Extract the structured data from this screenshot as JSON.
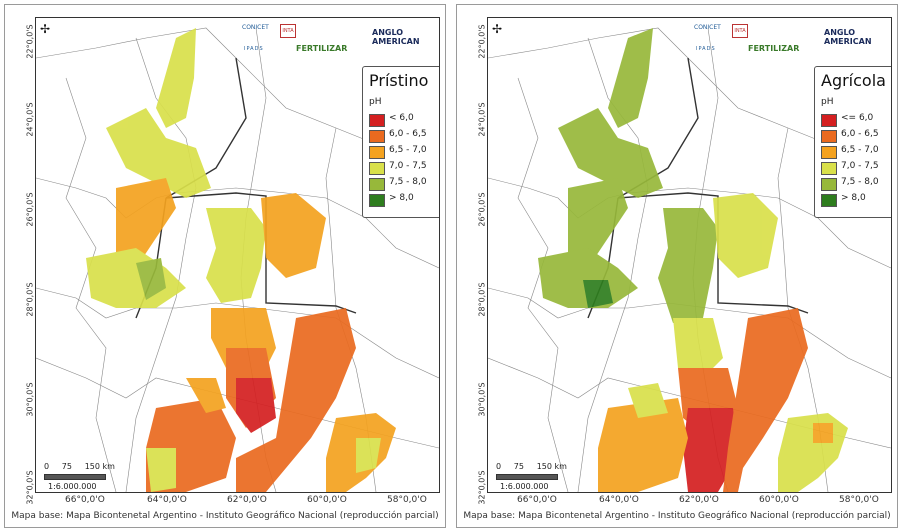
{
  "panels": [
    {
      "title": "Prístino",
      "legend_unit": "pH",
      "legend": [
        {
          "label": "< 6,0",
          "color": "#d41f20"
        },
        {
          "label": "6,0 - 6,5",
          "color": "#ea6a1f"
        },
        {
          "label": "6,5 - 7,0",
          "color": "#f4a21f"
        },
        {
          "label": "7,0 - 7,5",
          "color": "#d9e04a"
        },
        {
          "label": "7,5 - 8,0",
          "color": "#97b83a"
        },
        {
          "label": "> 8,0",
          "color": "#2e7d1e"
        }
      ]
    },
    {
      "title": "Agrícola",
      "legend_unit": "pH",
      "legend": [
        {
          "label": "<= 6,0",
          "color": "#d41f20"
        },
        {
          "label": "6,0 - 6,5",
          "color": "#ea6a1f"
        },
        {
          "label": "6,5 - 7,0",
          "color": "#f4a21f"
        },
        {
          "label": "7,0 - 7,5",
          "color": "#d9e04a"
        },
        {
          "label": "7,5 - 8,0",
          "color": "#97b83a"
        },
        {
          "label": "> 8,0",
          "color": "#2e7d1e"
        }
      ]
    }
  ],
  "lat_labels": [
    "22°0,0'S",
    "24°0,0'S",
    "26°0,0'S",
    "28°0,0'S",
    "30°0,0'S",
    "32°0,0'S"
  ],
  "lon_labels": [
    "66°0,0'O",
    "64°0,0'O",
    "62°0,0'O",
    "60°0,0'O",
    "58°0,0'O"
  ],
  "scale": {
    "ticks": "0     75     150 km",
    "ratio": "1:6.000.000"
  },
  "logos": {
    "conicet": "CONICET",
    "ipads": "IPADS",
    "inta": "INTA",
    "fertilizar": "FERTILIZAR",
    "anglo": "ANGLO\nAMERICAN"
  },
  "caption": "Mapa base: Mapa Bicontenetal Argentino - Instituto Geográfico Nacional (reproducción parcial)"
}
